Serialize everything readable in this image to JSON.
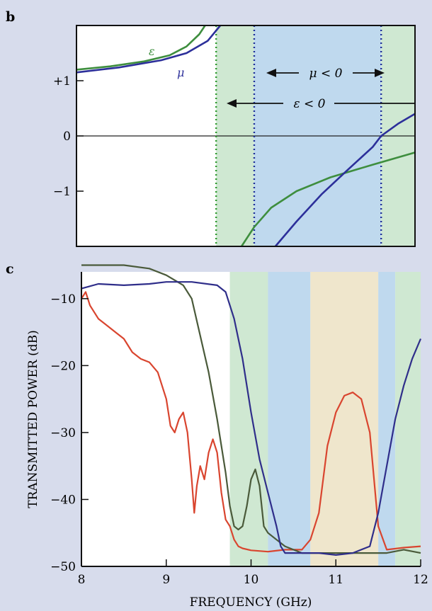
{
  "colors": {
    "page_background": "#d7dcec",
    "plot_background": "#ffffff",
    "green_band": "#cfe8d2",
    "blue_band": "#bfd9ee",
    "orange_band": "#efe6cc",
    "epsilon_curve": "#3e8e3e",
    "mu_curve": "#2c2f9a",
    "red_trace": "#d9452f",
    "green_trace": "#4a5a3a",
    "blue_trace": "#2f2e8a",
    "green_marker": "#2f9a2f",
    "blue_marker": "#1f2f9a"
  },
  "chart_data": [
    {
      "panel_label": "b",
      "type": "line",
      "ylim": [
        -2,
        2
      ],
      "xlim": [
        8,
        12
      ],
      "yticks": [
        {
          "value": 1,
          "label": "+1"
        },
        {
          "value": 0,
          "label": "0"
        },
        {
          "value": -1,
          "label": "−1"
        }
      ],
      "zero_line": true,
      "bands": [
        {
          "from": 9.65,
          "to": 10.1,
          "color": "green"
        },
        {
          "from": 10.1,
          "to": 11.6,
          "color": "blue"
        },
        {
          "from": 11.6,
          "to": 12.0,
          "color": "green"
        }
      ],
      "vertical_markers": [
        {
          "x": 9.65,
          "color": "green"
        },
        {
          "x": 10.1,
          "color": "blue"
        },
        {
          "x": 11.6,
          "color": "blue"
        }
      ],
      "annotations": {
        "mu_range": "μ < 0",
        "eps_range": "ε < 0"
      },
      "series": [
        {
          "name": "ε",
          "color": "epsilon",
          "segments": [
            [
              [
                8.0,
                1.2
              ],
              [
                8.4,
                1.26
              ],
              [
                8.8,
                1.35
              ],
              [
                9.1,
                1.46
              ],
              [
                9.3,
                1.62
              ],
              [
                9.45,
                1.84
              ],
              [
                9.52,
                2.0
              ]
            ],
            [
              [
                9.95,
                -2.0
              ],
              [
                10.1,
                -1.65
              ],
              [
                10.3,
                -1.3
              ],
              [
                10.6,
                -1.0
              ],
              [
                11.0,
                -0.75
              ],
              [
                11.5,
                -0.52
              ],
              [
                12.0,
                -0.3
              ]
            ]
          ]
        },
        {
          "name": "μ",
          "color": "mu",
          "segments": [
            [
              [
                8.0,
                1.15
              ],
              [
                8.5,
                1.24
              ],
              [
                9.0,
                1.37
              ],
              [
                9.3,
                1.5
              ],
              [
                9.55,
                1.72
              ],
              [
                9.7,
                2.0
              ]
            ],
            [
              [
                10.35,
                -2.0
              ],
              [
                10.6,
                -1.55
              ],
              [
                10.9,
                -1.05
              ],
              [
                11.2,
                -0.62
              ],
              [
                11.5,
                -0.2
              ],
              [
                11.6,
                0.0
              ],
              [
                11.8,
                0.22
              ],
              [
                12.0,
                0.4
              ]
            ]
          ]
        }
      ]
    },
    {
      "panel_label": "c",
      "type": "line",
      "xlabel": "FREQUENCY (GHz)",
      "ylabel": "TRANSMITTED POWER (dB)",
      "xlim": [
        8,
        12
      ],
      "ylim": [
        -50,
        -6
      ],
      "xticks": [
        "8",
        "9",
        "10",
        "11",
        "12"
      ],
      "yticks": [
        "−10",
        "−20",
        "−30",
        "−40",
        "−50"
      ],
      "bands": [
        {
          "from": 9.75,
          "to": 10.2,
          "color": "green"
        },
        {
          "from": 10.2,
          "to": 10.7,
          "color": "blue"
        },
        {
          "from": 10.7,
          "to": 11.5,
          "color": "orange"
        },
        {
          "from": 11.5,
          "to": 11.7,
          "color": "blue"
        },
        {
          "from": 11.7,
          "to": 12.0,
          "color": "green"
        }
      ],
      "series": [
        {
          "color": "red",
          "x": [
            8.0,
            8.05,
            8.1,
            8.2,
            8.3,
            8.4,
            8.5,
            8.6,
            8.7,
            8.8,
            8.9,
            9.0,
            9.05,
            9.1,
            9.15,
            9.2,
            9.25,
            9.3,
            9.33,
            9.36,
            9.4,
            9.45,
            9.5,
            9.55,
            9.6,
            9.65,
            9.7,
            9.75,
            9.8,
            9.85,
            9.9,
            10.0,
            10.2,
            10.4,
            10.6,
            10.7,
            10.8,
            10.9,
            11.0,
            11.1,
            11.2,
            11.3,
            11.4,
            11.5,
            11.6,
            11.8,
            12.0
          ],
          "y": [
            -10,
            -9,
            -11,
            -13,
            -14,
            -15,
            -16,
            -18,
            -19,
            -19.5,
            -21,
            -25,
            -29,
            -30,
            -28,
            -27,
            -30,
            -37,
            -42,
            -38,
            -35,
            -37,
            -33,
            -31,
            -33,
            -39,
            -43,
            -44,
            -46,
            -47,
            -47.3,
            -47.6,
            -47.8,
            -47.5,
            -47.5,
            -46,
            -42,
            -32,
            -27,
            -24.5,
            -24,
            -25,
            -30,
            -44,
            -47.5,
            -47.2,
            -47
          ]
        },
        {
          "color": "green",
          "x": [
            8.0,
            8.5,
            8.8,
            9.0,
            9.2,
            9.3,
            9.5,
            9.6,
            9.7,
            9.75,
            9.8,
            9.85,
            9.9,
            9.95,
            10.0,
            10.05,
            10.1,
            10.15,
            10.2,
            10.3,
            10.4,
            10.6,
            10.8,
            11.0,
            11.2,
            11.4,
            11.6,
            11.8,
            12.0
          ],
          "y": [
            -5,
            -5,
            -5.5,
            -6.5,
            -8,
            -10,
            -21,
            -28,
            -36,
            -41,
            -44,
            -44.5,
            -44,
            -41,
            -37,
            -35.5,
            -38,
            -44,
            -45,
            -46,
            -47,
            -48,
            -48,
            -48,
            -48,
            -48,
            -48,
            -47.5,
            -48
          ]
        },
        {
          "color": "blue",
          "x": [
            8.0,
            8.2,
            8.5,
            8.8,
            9.0,
            9.3,
            9.6,
            9.7,
            9.8,
            9.9,
            10.0,
            10.1,
            10.2,
            10.3,
            10.35,
            10.4,
            10.5,
            10.6,
            10.8,
            11.0,
            11.2,
            11.4,
            11.5,
            11.6,
            11.7,
            11.8,
            11.9,
            12.0
          ],
          "y": [
            -8.5,
            -7.8,
            -8,
            -7.8,
            -7.5,
            -7.5,
            -8,
            -9,
            -13,
            -19,
            -27,
            -34,
            -39,
            -44,
            -47,
            -48,
            -48,
            -48,
            -48,
            -48.3,
            -48,
            -47,
            -42,
            -35,
            -28,
            -23,
            -19,
            -16
          ]
        }
      ]
    }
  ]
}
